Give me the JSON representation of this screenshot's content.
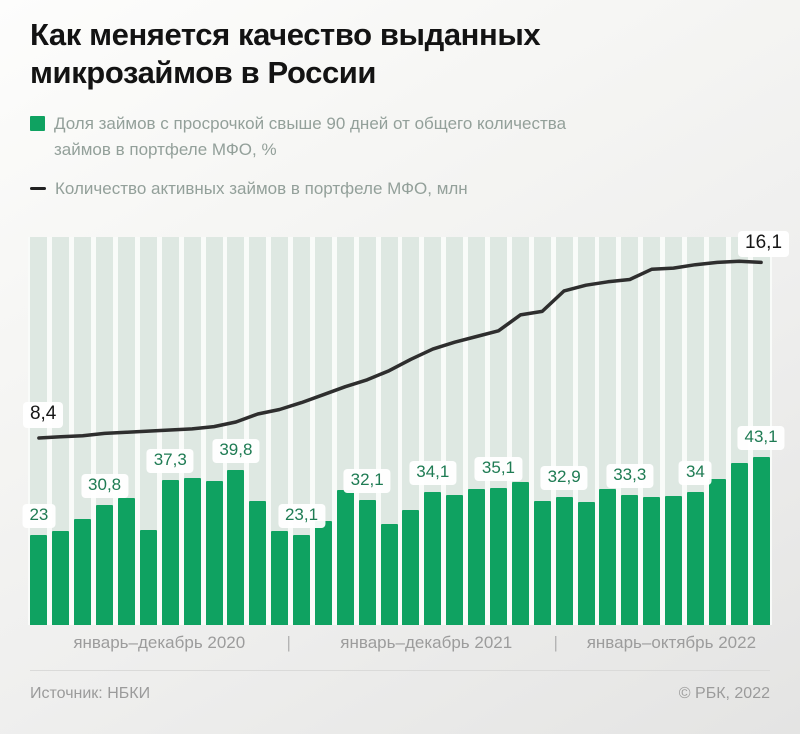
{
  "title": {
    "lines": [
      "Как меняется качество выданных",
      "микрозаймов в России"
    ]
  },
  "legend": {
    "bars": {
      "lines": [
        "Доля займов с просрочкой свыше 90 дней от общего количества",
        "займов в портфеле МФО, %"
      ]
    },
    "line": {
      "label": "Количество активных займов в портфеле МФО, млн"
    }
  },
  "colors": {
    "bar": "#0fa261",
    "line": "#2e2e2e",
    "stripe": "#dee8e2",
    "bar_label_text": "#1e7b53",
    "line_label_text": "#161616"
  },
  "chart_data": {
    "type": "bar+line",
    "title": "Как меняется качество выданных микрозаймов в России",
    "grid": "vertical-stripes",
    "legend_position": "top",
    "x_groups": [
      {
        "label": "январь–декабрь 2020",
        "months": 12
      },
      {
        "label": "январь–декабрь 2021",
        "months": 12
      },
      {
        "label": "январь–октябрь 2022",
        "months": 10
      }
    ],
    "bar_series": {
      "name": "Доля займов с просрочкой свыше 90 дней от общего количества займов в портфеле МФО, %",
      "unit": "%",
      "values": [
        23,
        24.1,
        27.1,
        30.8,
        32.6,
        24.4,
        37.3,
        37.8,
        36.8,
        39.8,
        31.8,
        24.1,
        23.1,
        26.6,
        34.7,
        32.1,
        25.8,
        29.5,
        34.1,
        33.3,
        35,
        35.1,
        36.6,
        31.7,
        32.9,
        31.5,
        34.8,
        33.3,
        32.9,
        33.1,
        34,
        37.4,
        41.5,
        43.1
      ],
      "point_labels": [
        {
          "index": 0,
          "text": "23"
        },
        {
          "index": 3,
          "text": "30,8"
        },
        {
          "index": 6,
          "text": "37,3"
        },
        {
          "index": 9,
          "text": "39,8"
        },
        {
          "index": 12,
          "text": "23,1"
        },
        {
          "index": 15,
          "text": "32,1"
        },
        {
          "index": 18,
          "text": "34,1"
        },
        {
          "index": 21,
          "text": "35,1"
        },
        {
          "index": 24,
          "text": "32,9"
        },
        {
          "index": 27,
          "text": "33,3"
        },
        {
          "index": 30,
          "text": "34"
        },
        {
          "index": 33,
          "text": "43,1"
        }
      ]
    },
    "line_series": {
      "name": "Количество активных займов в портфеле МФО, млн",
      "unit": "млн",
      "values": [
        8.4,
        8.45,
        8.5,
        8.6,
        8.65,
        8.7,
        8.75,
        8.8,
        8.9,
        9.1,
        9.45,
        9.65,
        9.95,
        10.3,
        10.65,
        10.95,
        11.35,
        11.85,
        12.3,
        12.6,
        12.85,
        13.1,
        13.8,
        13.95,
        14.85,
        15.1,
        15.25,
        15.35,
        15.8,
        15.85,
        16,
        16.1,
        16.15,
        16.1
      ],
      "first_label": "8,4",
      "last_label": "16,1"
    }
  },
  "axis": {
    "separator": "|"
  },
  "footer": {
    "source": "Источник: НБКИ",
    "copyright": "© РБК, 2022"
  }
}
